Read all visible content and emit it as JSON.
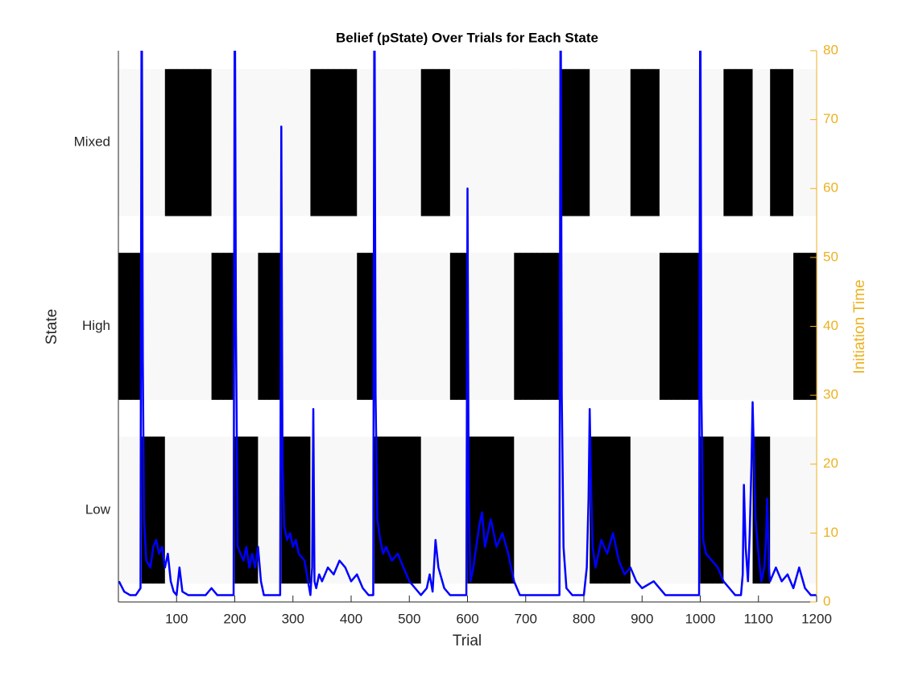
{
  "chart_data": {
    "type": "heatmap",
    "title": "Belief (pState) Over Trials for Each State",
    "xlabel": "Trial",
    "ylabel": "State",
    "y2label": "Initiation Time",
    "y2color": "#EDB120",
    "xlim": [
      0,
      1200
    ],
    "xticks": [
      100,
      200,
      300,
      400,
      500,
      600,
      700,
      800,
      900,
      1000,
      1100,
      1200
    ],
    "categories": [
      "Mixed",
      "High",
      "Low"
    ],
    "z": [
      [
        0,
        0,
        0,
        0,
        0,
        0,
        0,
        0,
        1,
        1,
        1,
        1,
        1,
        1,
        1,
        1,
        0,
        0,
        0,
        0,
        0,
        0,
        0,
        0,
        0,
        0,
        0,
        0,
        0,
        0,
        0,
        0,
        0,
        1,
        1,
        1,
        1,
        1,
        1,
        1,
        1,
        0,
        0,
        0,
        0,
        0,
        0,
        0,
        0,
        0,
        0,
        0,
        1,
        1,
        1,
        1,
        1,
        0,
        0,
        0,
        0,
        0,
        0,
        0,
        0,
        0,
        0,
        0,
        0,
        0,
        0,
        0,
        0,
        0,
        0,
        0,
        1,
        1,
        1,
        1,
        1,
        0,
        0,
        0,
        0,
        0,
        0,
        0,
        1,
        1,
        1,
        1,
        1,
        0,
        0,
        0,
        0,
        0,
        0,
        0,
        0,
        0,
        0,
        0,
        1,
        1,
        1,
        1,
        1,
        0,
        0,
        0,
        1,
        1,
        1,
        1,
        0,
        0,
        0,
        0
      ],
      [
        1,
        1,
        1,
        1,
        0,
        0,
        0,
        0,
        0,
        0,
        0,
        0,
        0,
        0,
        0,
        0,
        1,
        1,
        1,
        1,
        0,
        0,
        0,
        0,
        1,
        1,
        1,
        1,
        0,
        0,
        0,
        0,
        0,
        0,
        0,
        0,
        0,
        0,
        0,
        0,
        0,
        1,
        1,
        1,
        0,
        0,
        0,
        0,
        0,
        0,
        0,
        0,
        0,
        0,
        0,
        0,
        0,
        1,
        1,
        1,
        0,
        0,
        0,
        0,
        0,
        0,
        0,
        0,
        1,
        1,
        1,
        1,
        1,
        1,
        1,
        1,
        0,
        0,
        0,
        0,
        0,
        0,
        0,
        0,
        0,
        0,
        0,
        0,
        0,
        0,
        0,
        0,
        0,
        1,
        1,
        1,
        1,
        1,
        1,
        1,
        0,
        0,
        0,
        0,
        0,
        0,
        0,
        0,
        0,
        0,
        0,
        0,
        0,
        0,
        0,
        0,
        1,
        1,
        1,
        1
      ],
      [
        0,
        0,
        0,
        0,
        1,
        1,
        1,
        1,
        0,
        0,
        0,
        0,
        0,
        0,
        0,
        0,
        0,
        0,
        0,
        0,
        1,
        1,
        1,
        1,
        0,
        0,
        0,
        0,
        1,
        1,
        1,
        1,
        1,
        0,
        0,
        0,
        0,
        0,
        0,
        0,
        0,
        0,
        0,
        0,
        1,
        1,
        1,
        1,
        1,
        1,
        1,
        1,
        0,
        0,
        0,
        0,
        0,
        0,
        0,
        0,
        1,
        1,
        1,
        1,
        1,
        1,
        1,
        1,
        0,
        0,
        0,
        0,
        0,
        0,
        0,
        0,
        0,
        0,
        0,
        0,
        0,
        1,
        1,
        1,
        1,
        1,
        1,
        1,
        0,
        0,
        0,
        0,
        0,
        0,
        0,
        0,
        0,
        0,
        0,
        0,
        1,
        1,
        1,
        1,
        0,
        0,
        0,
        0,
        0,
        1,
        1,
        1,
        0,
        0,
        0,
        0,
        0,
        0,
        0,
        0
      ]
    ],
    "y2lim": [
      0,
      80
    ],
    "y2ticks": [
      0,
      10,
      20,
      30,
      40,
      50,
      60,
      70,
      80
    ],
    "series": [
      {
        "color": "#0000ff",
        "axis": "y2",
        "x": [
          1,
          10,
          20,
          30,
          38,
          40,
          42,
          44,
          48,
          55,
          60,
          65,
          70,
          75,
          80,
          85,
          90,
          95,
          100,
          105,
          110,
          120,
          130,
          140,
          150,
          160,
          170,
          180,
          190,
          198,
          200,
          202,
          205,
          210,
          215,
          220,
          225,
          230,
          235,
          240,
          245,
          250,
          260,
          270,
          278,
          280,
          282,
          285,
          290,
          295,
          300,
          305,
          310,
          320,
          330,
          333,
          335,
          337,
          340,
          345,
          350,
          360,
          370,
          380,
          390,
          400,
          410,
          420,
          430,
          438,
          440,
          442,
          445,
          450,
          455,
          460,
          470,
          480,
          490,
          500,
          510,
          520,
          530,
          535,
          540,
          545,
          550,
          560,
          570,
          580,
          590,
          598,
          600,
          602,
          605,
          610,
          620,
          625,
          630,
          640,
          650,
          660,
          670,
          680,
          690,
          700,
          720,
          740,
          758,
          760,
          762,
          765,
          770,
          780,
          790,
          800,
          805,
          808,
          810,
          812,
          815,
          820,
          830,
          840,
          850,
          860,
          870,
          880,
          890,
          900,
          920,
          940,
          960,
          980,
          998,
          1000,
          1002,
          1005,
          1010,
          1020,
          1030,
          1040,
          1050,
          1060,
          1070,
          1073,
          1075,
          1078,
          1082,
          1085,
          1088,
          1090,
          1092,
          1095,
          1100,
          1105,
          1110,
          1113,
          1115,
          1118,
          1120,
          1130,
          1140,
          1150,
          1160,
          1170,
          1180,
          1190,
          1200
        ],
        "values": [
          3,
          1.5,
          1,
          1,
          2,
          95,
          35,
          12,
          6,
          5,
          8,
          9,
          7,
          8,
          5,
          7,
          3,
          1.5,
          1,
          5,
          1.5,
          1,
          1,
          1,
          1,
          2,
          1,
          1,
          1,
          1,
          95,
          40,
          8,
          7,
          6,
          8,
          5,
          7,
          5,
          8,
          3,
          1,
          1,
          1,
          1,
          69,
          20,
          11,
          9,
          10,
          8,
          9,
          7,
          6,
          1,
          5,
          28,
          3,
          2,
          4,
          3,
          5,
          4,
          6,
          5,
          3,
          4,
          2,
          1,
          1,
          95,
          30,
          12,
          9,
          7,
          8,
          6,
          7,
          5,
          3,
          2,
          1,
          2,
          4,
          1.5,
          9,
          5,
          2,
          1,
          1,
          1,
          1,
          60,
          15,
          3,
          5,
          11,
          13,
          8,
          12,
          8,
          10,
          7,
          3,
          1,
          1,
          1,
          1,
          1,
          95,
          30,
          8,
          2,
          1,
          1,
          1,
          5,
          15,
          28,
          18,
          8,
          5,
          9,
          7,
          10,
          6,
          4,
          5,
          3,
          2,
          3,
          1,
          1,
          1,
          1,
          95,
          30,
          9,
          7,
          6,
          5,
          3,
          2,
          1,
          1,
          4,
          17,
          8,
          3,
          10,
          20,
          29,
          22,
          12,
          7,
          3,
          5,
          9,
          15,
          5,
          3,
          5,
          3,
          4,
          2,
          5,
          2,
          1,
          1
        ]
      }
    ]
  }
}
